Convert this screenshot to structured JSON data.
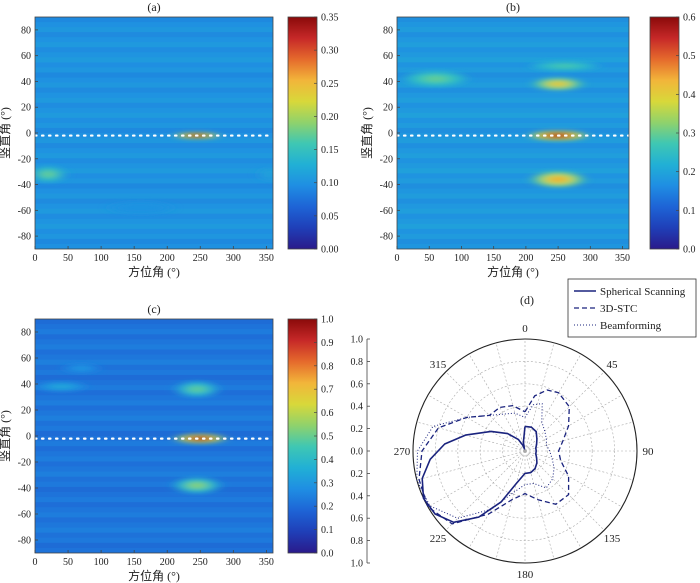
{
  "colorscale": [
    "#2a1a8a",
    "#1f3fb8",
    "#1e64d6",
    "#1f8ee3",
    "#21b0d5",
    "#3fc7b3",
    "#8fd26c",
    "#d8d83a",
    "#f2b53a",
    "#e56a2c",
    "#c62828",
    "#8a0a0a"
  ],
  "heatmap_axes": {
    "xlabel": "方位角 (°)",
    "ylabel": "竖直角 (°)",
    "xticks": [
      0,
      50,
      100,
      150,
      200,
      250,
      300,
      350
    ],
    "yticks": [
      80,
      60,
      40,
      20,
      0,
      -20,
      -40,
      -60,
      -80
    ]
  },
  "chart_data": [
    {
      "id": "a",
      "type": "heatmap",
      "title": "(a)",
      "xlim": [
        0,
        360
      ],
      "ylim": [
        -90,
        90
      ],
      "colorbar": {
        "min": 0,
        "max": 0.35,
        "ticks": [
          "0.35",
          "0.30",
          "0.25",
          "0.20",
          "0.15",
          "0.10",
          "0.05",
          "0.00"
        ]
      },
      "background_level": 0.1,
      "marker_line_elevation": -2,
      "features": [
        {
          "azimuth": 245,
          "elevation": -2,
          "value": 0.35,
          "azimuth_width": 60,
          "elevation_width": 2
        },
        {
          "azimuth": 20,
          "elevation": -32,
          "value": 0.18,
          "azimuth_width": 45,
          "elevation_width": 5
        },
        {
          "azimuth": 160,
          "elevation": -58,
          "value": 0.1,
          "azimuth_width": 90,
          "elevation_width": 4
        },
        {
          "azimuth": 355,
          "elevation": -32,
          "value": 0.12,
          "azimuth_width": 25,
          "elevation_width": 4
        }
      ]
    },
    {
      "id": "b",
      "type": "heatmap",
      "title": "(b)",
      "xlim": [
        0,
        360
      ],
      "ylim": [
        -90,
        90
      ],
      "colorbar": {
        "min": 0,
        "max": 0.6,
        "ticks": [
          "0.6",
          "0.5",
          "0.4",
          "0.3",
          "0.2",
          "0.1",
          "0.0"
        ]
      },
      "background_level": 0.18,
      "marker_line_elevation": -2,
      "features": [
        {
          "azimuth": 250,
          "elevation": -2,
          "value": 0.6,
          "azimuth_width": 80,
          "elevation_width": 3
        },
        {
          "azimuth": 250,
          "elevation": 38,
          "value": 0.42,
          "azimuth_width": 70,
          "elevation_width": 4
        },
        {
          "azimuth": 250,
          "elevation": -36,
          "value": 0.45,
          "azimuth_width": 75,
          "elevation_width": 5
        },
        {
          "azimuth": 60,
          "elevation": 42,
          "value": 0.3,
          "azimuth_width": 90,
          "elevation_width": 5
        },
        {
          "azimuth": 260,
          "elevation": 52,
          "value": 0.28,
          "azimuth_width": 100,
          "elevation_width": 3
        }
      ]
    },
    {
      "id": "c",
      "type": "heatmap",
      "title": "(c)",
      "xlim": [
        0,
        360
      ],
      "ylim": [
        -90,
        90
      ],
      "colorbar": {
        "min": 0,
        "max": 1.0,
        "ticks": [
          "1.0",
          "0.9",
          "0.8",
          "0.7",
          "0.6",
          "0.5",
          "0.4",
          "0.3",
          "0.2",
          "0.1",
          "0.0"
        ]
      },
      "background_level": 0.22,
      "marker_line_elevation": -2,
      "features": [
        {
          "azimuth": 250,
          "elevation": -2,
          "value": 1.0,
          "azimuth_width": 70,
          "elevation_width": 3
        },
        {
          "azimuth": 245,
          "elevation": 36,
          "value": 0.5,
          "azimuth_width": 60,
          "elevation_width": 5
        },
        {
          "azimuth": 245,
          "elevation": -38,
          "value": 0.55,
          "azimuth_width": 65,
          "elevation_width": 5
        },
        {
          "azimuth": 40,
          "elevation": 38,
          "value": 0.35,
          "azimuth_width": 70,
          "elevation_width": 3
        },
        {
          "azimuth": 70,
          "elevation": 52,
          "value": 0.3,
          "azimuth_width": 50,
          "elevation_width": 3
        }
      ]
    },
    {
      "id": "d",
      "type": "polar",
      "title": "(d)",
      "r_ticks": [
        "1.0",
        "0.8",
        "0.6",
        "0.4",
        "0.2",
        "0.0",
        "0.2",
        "0.4",
        "0.6",
        "0.8",
        "1.0"
      ],
      "angle_labels": [
        {
          "deg": 0,
          "label": "0"
        },
        {
          "deg": 45,
          "label": "45"
        },
        {
          "deg": 90,
          "label": "90"
        },
        {
          "deg": 135,
          "label": "135"
        },
        {
          "deg": 180,
          "label": "180"
        },
        {
          "deg": 225,
          "label": "225"
        },
        {
          "deg": 270,
          "label": "270"
        },
        {
          "deg": 315,
          "label": "315"
        }
      ],
      "legend": {
        "position": "top-right"
      },
      "series": [
        {
          "name": "Spherical Scanning",
          "style": "solid",
          "points": [
            [
              0,
              0.22
            ],
            [
              15,
              0.22
            ],
            [
              30,
              0.2
            ],
            [
              45,
              0.15
            ],
            [
              60,
              0.12
            ],
            [
              75,
              0.1
            ],
            [
              90,
              0.1
            ],
            [
              105,
              0.1
            ],
            [
              120,
              0.12
            ],
            [
              135,
              0.15
            ],
            [
              150,
              0.18
            ],
            [
              165,
              0.2
            ],
            [
              180,
              0.2
            ],
            [
              195,
              0.3
            ],
            [
              205,
              0.5
            ],
            [
              215,
              0.72
            ],
            [
              225,
              0.9
            ],
            [
              235,
              0.98
            ],
            [
              245,
              1.0
            ],
            [
              255,
              0.95
            ],
            [
              265,
              0.85
            ],
            [
              275,
              0.72
            ],
            [
              285,
              0.55
            ],
            [
              300,
              0.35
            ],
            [
              315,
              0.22
            ],
            [
              330,
              0.12
            ],
            [
              340,
              0.05
            ],
            [
              345,
              0.02
            ],
            [
              350,
              0.08
            ],
            [
              360,
              0.22
            ]
          ]
        },
        {
          "name": "3D-STC",
          "style": "dashed",
          "points": [
            [
              0,
              0.35
            ],
            [
              10,
              0.5
            ],
            [
              20,
              0.58
            ],
            [
              30,
              0.6
            ],
            [
              45,
              0.56
            ],
            [
              60,
              0.45
            ],
            [
              75,
              0.35
            ],
            [
              90,
              0.3
            ],
            [
              105,
              0.33
            ],
            [
              120,
              0.45
            ],
            [
              135,
              0.55
            ],
            [
              150,
              0.55
            ],
            [
              165,
              0.45
            ],
            [
              180,
              0.38
            ],
            [
              195,
              0.45
            ],
            [
              210,
              0.65
            ],
            [
              225,
              0.92
            ],
            [
              240,
              1.0
            ],
            [
              255,
              0.98
            ],
            [
              270,
              0.92
            ],
            [
              285,
              0.8
            ],
            [
              300,
              0.6
            ],
            [
              315,
              0.45
            ],
            [
              330,
              0.45
            ],
            [
              345,
              0.42
            ],
            [
              360,
              0.35
            ]
          ]
        },
        {
          "name": "Beamforming",
          "style": "dotted",
          "points": [
            [
              0,
              0.3
            ],
            [
              10,
              0.42
            ],
            [
              20,
              0.45
            ],
            [
              30,
              0.3
            ],
            [
              45,
              0.25
            ],
            [
              60,
              0.22
            ],
            [
              75,
              0.2
            ],
            [
              90,
              0.22
            ],
            [
              105,
              0.25
            ],
            [
              120,
              0.3
            ],
            [
              135,
              0.35
            ],
            [
              150,
              0.38
            ],
            [
              165,
              0.3
            ],
            [
              180,
              0.3
            ],
            [
              195,
              0.38
            ],
            [
              210,
              0.6
            ],
            [
              225,
              0.85
            ],
            [
              240,
              0.98
            ],
            [
              255,
              1.0
            ],
            [
              270,
              0.96
            ],
            [
              285,
              0.85
            ],
            [
              300,
              0.6
            ],
            [
              315,
              0.45
            ],
            [
              330,
              0.38
            ],
            [
              345,
              0.35
            ],
            [
              360,
              0.3
            ]
          ]
        }
      ]
    }
  ]
}
